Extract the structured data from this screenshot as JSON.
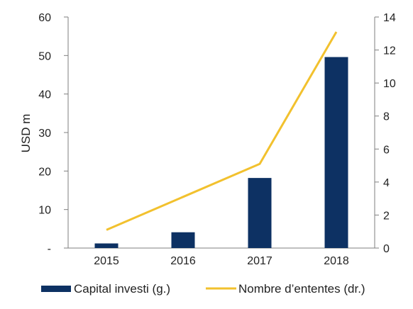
{
  "chart_data": {
    "type": "bar",
    "categories": [
      "2015",
      "2016",
      "2017",
      "2018"
    ],
    "series": [
      {
        "name": "Capital investi (g.)",
        "type": "bar",
        "axis": "left",
        "values": [
          1.2,
          4.1,
          18.2,
          49.6
        ]
      },
      {
        "name": "Nombre d’ententes (dr.)",
        "type": "line",
        "axis": "right",
        "values": [
          1.1,
          3.1,
          5.1,
          13.1
        ]
      }
    ],
    "ylabel": "USD m",
    "ylim": [
      0,
      60
    ],
    "y_ticks": [
      "-",
      "10",
      "20",
      "30",
      "40",
      "50",
      "60"
    ],
    "y2lim": [
      0,
      14
    ],
    "y2_ticks": [
      "0",
      "2",
      "4",
      "6",
      "8",
      "10",
      "12",
      "14"
    ],
    "grid": false,
    "legend": "bottom",
    "colors": {
      "bar": "#0d3163",
      "line": "#f2c12e",
      "axis": "#7f7f7f"
    }
  }
}
